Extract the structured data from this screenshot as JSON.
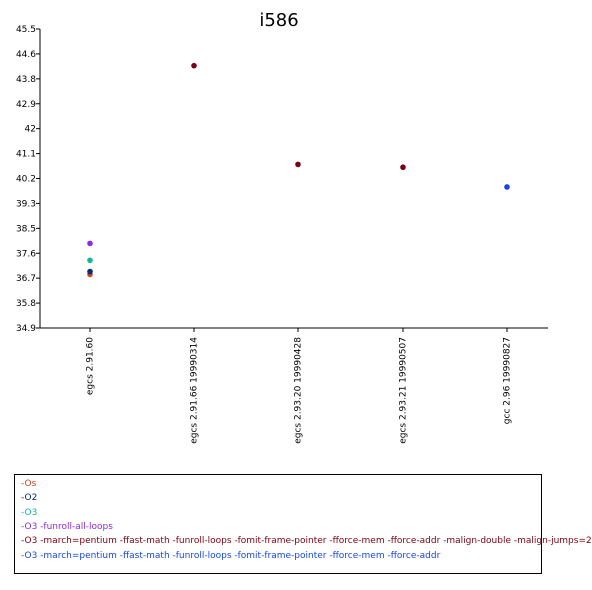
{
  "chart_data": {
    "type": "scatter",
    "title": "i586",
    "xlabel": "",
    "ylabel": "",
    "categories": [
      "egcs 2.91.60",
      "egcs 2.91.66 19990314",
      "egcs 2.93.20 19990428",
      "egcs 2.93.21 19990507",
      "gcc 2.96 19990827"
    ],
    "ylim": [
      34.9,
      45.5
    ],
    "yticks": [
      "45.5",
      "44.6",
      "43.8",
      "42.9",
      "42",
      "41.1",
      "40.2",
      "39.3",
      "38.5",
      "37.6",
      "36.7",
      "35.8",
      "34.9"
    ],
    "grid": false,
    "legend_position": "bottom",
    "series": [
      {
        "name": "-Os",
        "color": "#cc4422",
        "values": [
          36.8,
          null,
          null,
          null,
          null
        ]
      },
      {
        "name": "-O2",
        "color": "#0a2a80",
        "values": [
          36.9,
          null,
          null,
          null,
          null
        ]
      },
      {
        "name": "-O3",
        "color": "#12b898",
        "values": [
          37.3,
          null,
          null,
          null,
          null
        ]
      },
      {
        "name": "-O3 -funroll-all-loops",
        "color": "#8a2be2",
        "values": [
          37.9,
          null,
          null,
          null,
          null
        ]
      },
      {
        "name": "-O3 -march=pentium -ffast-math -funroll-loops -fomit-frame-pointer -fforce-mem -fforce-addr -malign-double -malign-jumps=2",
        "color": "#7a0015",
        "values": [
          null,
          44.2,
          40.7,
          40.6,
          null
        ]
      },
      {
        "name": "-O3 -march=pentium -ffast-math -funroll-loops -fomit-frame-pointer -fforce-mem -fforce-addr",
        "color": "#1548e0",
        "values": [
          null,
          null,
          null,
          null,
          39.9
        ]
      }
    ]
  }
}
